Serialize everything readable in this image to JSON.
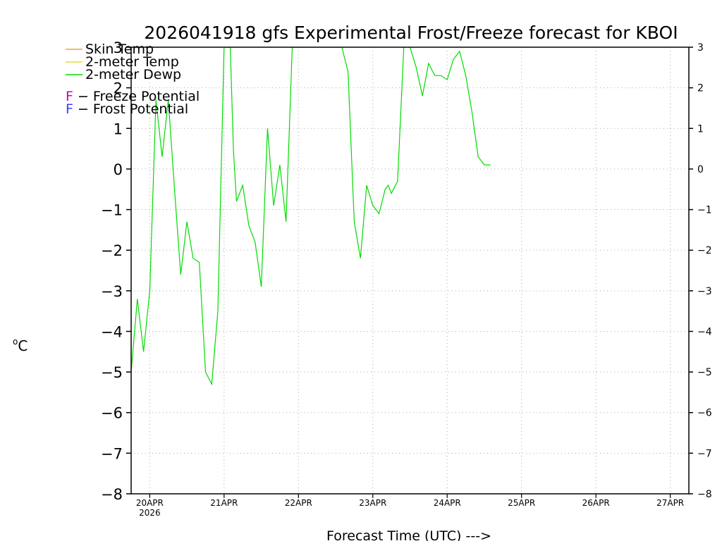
{
  "chart_data": {
    "type": "line",
    "title": "2026041918 gfs Experimental Frost/Freeze forecast for KBOI",
    "xlabel": "Forecast Time (UTC) --->",
    "ylabel": "oC",
    "ylabel_sup": "o",
    "ylabel_unit": "C",
    "ylim": [
      -8,
      3
    ],
    "yticks": [
      3,
      2,
      1,
      0,
      -1,
      -2,
      -3,
      -4,
      -5,
      -6,
      -7,
      -8
    ],
    "ytick_labels": [
      "3",
      "2",
      "1",
      "0",
      "−1",
      "−2",
      "−3",
      "−4",
      "−5",
      "−6",
      "−7",
      "−8"
    ],
    "x_unit": "hours since 2026-04-19 18Z",
    "xlim": [
      0,
      180
    ],
    "xtick_hours": [
      6,
      30,
      54,
      78,
      102,
      126,
      150,
      174
    ],
    "xtick_labels": [
      "20APR",
      "21APR",
      "22APR",
      "23APR",
      "24APR",
      "25APR",
      "26APR",
      "27APR"
    ],
    "xtick_sublabel": "2026",
    "grid": true,
    "legend": {
      "position": "top-left",
      "series_entries": [
        {
          "label": "Skin Temp",
          "color": "#f0a040"
        },
        {
          "label": "2-meter Temp",
          "color": "#e6dc32"
        },
        {
          "label": "2-meter Dewp",
          "color": "#00dc00"
        }
      ],
      "potential_entries": [
        {
          "symbol": "F",
          "label": " − Freeze Potential",
          "color": "#c800c8"
        },
        {
          "symbol": "F",
          "label": " − Frost Potential",
          "color": "#3c3cff"
        }
      ]
    },
    "series": [
      {
        "name": "2-meter Dewp",
        "color": "#00dc00",
        "x": [
          0,
          2,
          4,
          6,
          8,
          10,
          12,
          14,
          16,
          18,
          20,
          22,
          24,
          26,
          28,
          30,
          31,
          32,
          33,
          34,
          36,
          38,
          40,
          42,
          44,
          46,
          48,
          50,
          52,
          54,
          56,
          58,
          60,
          62,
          64,
          66,
          68,
          70,
          72,
          74,
          76,
          78,
          80,
          82,
          83,
          84,
          86,
          88,
          90,
          92,
          94,
          96,
          98,
          100,
          102,
          104,
          106,
          108,
          110,
          112,
          114,
          116,
          118,
          120,
          121
        ],
        "y": [
          -5.0,
          -3.2,
          -4.5,
          -3.0,
          1.7,
          0.3,
          1.7,
          -0.5,
          -2.6,
          -1.3,
          -2.2,
          -2.3,
          -5.0,
          -5.3,
          -3.5,
          3.0,
          3.0,
          3.0,
          0.5,
          -0.8,
          -0.4,
          -1.4,
          -1.8,
          -2.9,
          1.0,
          -0.9,
          0.1,
          -1.3,
          3.0,
          3.0,
          3.0,
          3.0,
          3.0,
          3.0,
          3.0,
          3.0,
          3.0,
          2.4,
          -1.3,
          -2.2,
          -0.4,
          -0.9,
          -1.1,
          -0.5,
          -0.4,
          -0.6,
          -0.3,
          3.0,
          3.0,
          2.5,
          1.8,
          2.6,
          2.3,
          2.3,
          2.2,
          2.7,
          2.9,
          2.3,
          1.4,
          0.3,
          0.1,
          0.1,
          null,
          null,
          null
        ]
      }
    ]
  }
}
